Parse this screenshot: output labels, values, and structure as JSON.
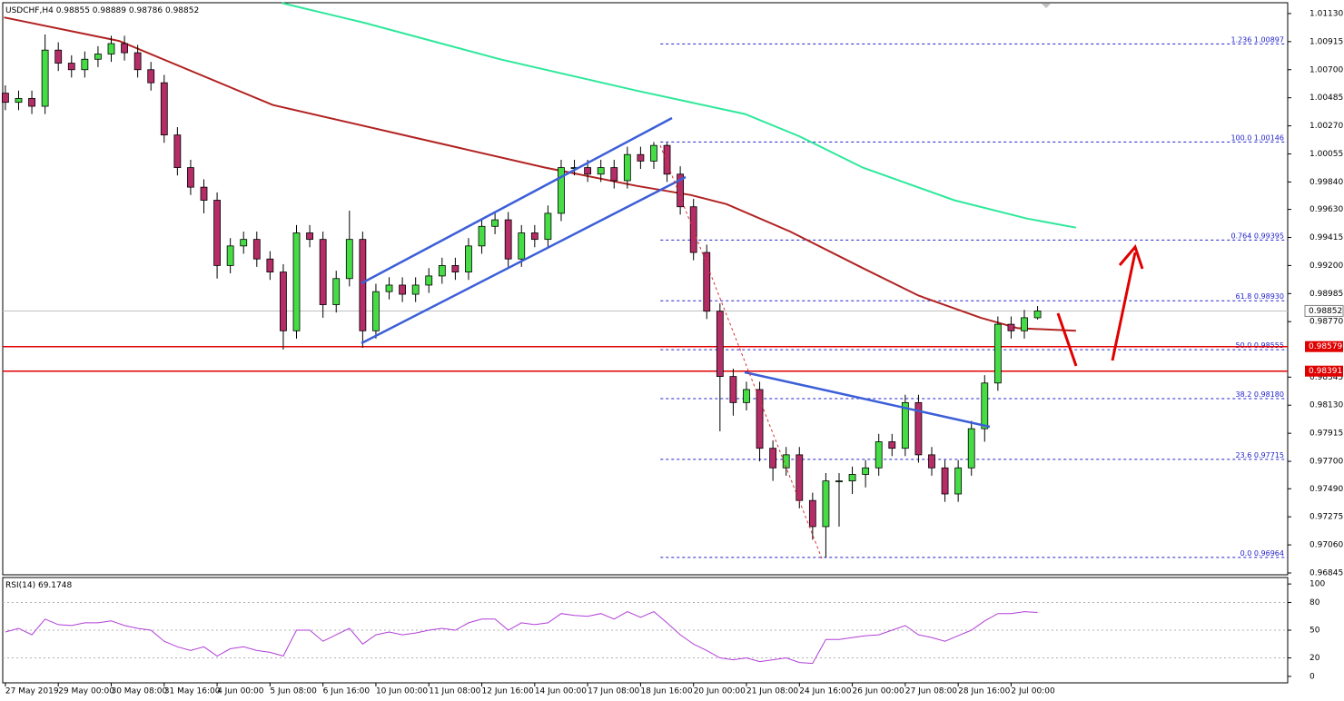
{
  "chart_data": {
    "type": "candlestick",
    "title": "USDCHF,H4",
    "ohlc_readout": [
      0.98855,
      0.98889,
      0.98786,
      0.98852
    ],
    "open": [
      1.0052,
      1.0045,
      1.0048,
      1.0042,
      1.0085,
      1.0075,
      1.007,
      1.0078,
      1.0082,
      1.009,
      1.0083,
      1.007,
      1.006,
      1.002,
      0.9995,
      0.998,
      0.997,
      0.992,
      0.9935,
      0.994,
      0.9925,
      0.9915,
      0.987,
      0.9945,
      0.994,
      0.989,
      0.991,
      0.994,
      0.987,
      0.99,
      0.9905,
      0.9898,
      0.9905,
      0.9912,
      0.992,
      0.9915,
      0.9935,
      0.995,
      0.9955,
      0.9925,
      0.9945,
      0.994,
      0.996,
      0.9995,
      0.9995,
      0.999,
      0.9995,
      0.9985,
      1.0005,
      1.0,
      1.0012,
      0.999,
      0.9965,
      0.993,
      0.9885,
      0.9835,
      0.9815,
      0.9825,
      0.978,
      0.9765,
      0.9775,
      0.974,
      0.972,
      0.9755,
      0.9755,
      0.976,
      0.9765,
      0.9785,
      0.978,
      0.9815,
      0.9775,
      0.9765,
      0.9745,
      0.9765,
      0.9795,
      0.983,
      0.9875,
      0.987,
      0.988
    ],
    "high": [
      1.0058,
      1.0054,
      1.0054,
      1.0097,
      1.0091,
      1.0081,
      1.0084,
      1.0088,
      1.0096,
      1.0096,
      1.0089,
      1.0076,
      1.0066,
      1.0026,
      1.0001,
      0.9986,
      0.9976,
      0.9941,
      0.9946,
      0.9946,
      0.9931,
      0.9921,
      0.9951,
      0.9951,
      0.9946,
      0.9916,
      0.9962,
      0.9946,
      0.9906,
      0.9911,
      0.9911,
      0.9911,
      0.9918,
      0.9926,
      0.9926,
      0.9941,
      0.9956,
      0.9961,
      0.9961,
      0.9951,
      0.9951,
      0.9966,
      1.0001,
      1.0001,
      1.0001,
      1.0001,
      1.0001,
      1.0011,
      1.0011,
      1.00146,
      1.0014,
      0.9996,
      0.9971,
      0.9936,
      0.9891,
      0.9841,
      0.9831,
      0.9831,
      0.9786,
      0.9781,
      0.9781,
      0.9746,
      0.9761,
      0.9761,
      0.9766,
      0.9771,
      0.9791,
      0.9791,
      0.9821,
      0.9821,
      0.9781,
      0.9771,
      0.9771,
      0.9801,
      0.9836,
      0.9881,
      0.9881,
      0.9886,
      0.98889
    ],
    "low": [
      1.0039,
      1.0039,
      1.0036,
      1.0036,
      1.0069,
      1.0064,
      1.0064,
      1.0072,
      1.0076,
      1.0077,
      1.0064,
      1.0054,
      1.0014,
      0.9989,
      0.9974,
      0.996,
      0.991,
      0.9914,
      0.9929,
      0.9919,
      0.9909,
      0.98556,
      0.9864,
      0.9934,
      0.988,
      0.9884,
      0.9904,
      0.9857,
      0.9864,
      0.9894,
      0.9892,
      0.9892,
      0.9899,
      0.9906,
      0.9909,
      0.9909,
      0.9929,
      0.9944,
      0.9919,
      0.9919,
      0.9934,
      0.9934,
      0.9954,
      0.9989,
      0.9984,
      0.9984,
      0.9979,
      0.9979,
      0.9994,
      0.9994,
      0.9984,
      0.9959,
      0.9924,
      0.9879,
      0.9793,
      0.9805,
      0.9809,
      0.977,
      0.9755,
      0.9759,
      0.9734,
      0.971,
      0.96964,
      0.972,
      0.9745,
      0.975,
      0.9759,
      0.9774,
      0.9774,
      0.9769,
      0.9759,
      0.9739,
      0.9739,
      0.9759,
      0.9785,
      0.9824,
      0.9864,
      0.9864,
      0.98786
    ],
    "close": [
      1.0045,
      1.0048,
      1.0042,
      1.0085,
      1.0075,
      1.007,
      1.0078,
      1.0082,
      1.009,
      1.0083,
      1.007,
      1.006,
      1.002,
      0.9995,
      0.998,
      0.997,
      0.992,
      0.9935,
      0.994,
      0.9925,
      0.9915,
      0.987,
      0.9945,
      0.994,
      0.989,
      0.991,
      0.994,
      0.987,
      0.99,
      0.9905,
      0.9898,
      0.9905,
      0.9912,
      0.992,
      0.9915,
      0.9935,
      0.995,
      0.9955,
      0.9925,
      0.9945,
      0.994,
      0.996,
      0.9995,
      0.9995,
      0.999,
      0.9995,
      0.9985,
      1.0005,
      1.0,
      1.0012,
      0.999,
      0.9965,
      0.993,
      0.9885,
      0.9835,
      0.9815,
      0.9825,
      0.978,
      0.9765,
      0.9775,
      0.974,
      0.972,
      0.9755,
      0.9755,
      0.976,
      0.9765,
      0.9785,
      0.978,
      0.9815,
      0.9775,
      0.9765,
      0.9745,
      0.9765,
      0.9795,
      0.983,
      0.9875,
      0.987,
      0.988,
      0.98852
    ],
    "up_color": "#46dc46",
    "down_color": "#b42d67",
    "xlim": [
      -0.2,
      96.9
    ],
    "xticks": [
      {
        "value": 0,
        "label": "27 May 2019"
      },
      {
        "value": 4,
        "label": "29 May 00:00"
      },
      {
        "value": 8,
        "label": "30 May 08:00"
      },
      {
        "value": 12,
        "label": "31 May 16:00"
      },
      {
        "value": 16,
        "label": "4 Jun 00:00"
      },
      {
        "value": 20,
        "label": "5 Jun 08:00"
      },
      {
        "value": 24,
        "label": "6 Jun 16:00"
      },
      {
        "value": 28,
        "label": "10 Jun 00:00"
      },
      {
        "value": 32,
        "label": "11 Jun 08:00"
      },
      {
        "value": 36,
        "label": "12 Jun 16:00"
      },
      {
        "value": 40,
        "label": "14 Jun 00:00"
      },
      {
        "value": 44,
        "label": "17 Jun 08:00"
      },
      {
        "value": 48,
        "label": "18 Jun 16:00"
      },
      {
        "value": 52,
        "label": "20 Jun 00:00"
      },
      {
        "value": 56,
        "label": "21 Jun 08:00"
      },
      {
        "value": 60,
        "label": "24 Jun 16:00"
      },
      {
        "value": 64,
        "label": "26 Jun 00:00"
      },
      {
        "value": 68,
        "label": "27 Jun 08:00"
      },
      {
        "value": 72,
        "label": "28 Jun 16:00"
      },
      {
        "value": 76,
        "label": "2 Jul 00:00"
      }
    ],
    "ylim": [
      0.96831,
      1.01213
    ],
    "yticks": [
      {
        "value": 1.0113,
        "label": "1.01130"
      },
      {
        "value": 1.00915,
        "label": "1.00915"
      },
      {
        "value": 1.007,
        "label": "1.00700"
      },
      {
        "value": 1.00485,
        "label": "1.00485"
      },
      {
        "value": 1.0027,
        "label": "1.00270"
      },
      {
        "value": 1.00055,
        "label": "1.00055"
      },
      {
        "value": 0.9984,
        "label": "0.99840"
      },
      {
        "value": 0.9963,
        "label": "0.99630"
      },
      {
        "value": 0.99415,
        "label": "0.99415"
      },
      {
        "value": 0.992,
        "label": "0.99200"
      },
      {
        "value": 0.98985,
        "label": "0.98985"
      },
      {
        "value": 0.9877,
        "label": "0.98770"
      },
      {
        "value": 0.98345,
        "label": "0.98345"
      },
      {
        "value": 0.9813,
        "label": "0.98130"
      },
      {
        "value": 0.97915,
        "label": "0.97915"
      },
      {
        "value": 0.977,
        "label": "0.97700"
      },
      {
        "value": 0.9749,
        "label": "0.97490"
      },
      {
        "value": 0.97275,
        "label": "0.97275"
      },
      {
        "value": 0.9706,
        "label": "0.97060"
      },
      {
        "value": 0.96845,
        "label": "0.96845"
      }
    ],
    "moving_averages": [
      {
        "color": "#b22222",
        "x": [
          -0.1,
          8.6,
          20.2,
          30.5,
          40.8,
          47.7,
          51.8,
          54.5,
          59.3,
          64.8,
          69,
          73.7,
          76.5,
          80.9
        ],
        "values": [
          1.011,
          1.0092,
          1.0043,
          1.0019,
          0.9995,
          0.9981,
          0.9974,
          0.9967,
          0.9946,
          0.9918,
          0.9897,
          0.988,
          0.9872,
          0.987
        ]
      },
      {
        "color": "#2ee89a",
        "x": [
          20.9,
          27.1,
          37.4,
          47.7,
          55.9,
          60,
          64.8,
          71.7,
          77.2,
          80.9
        ],
        "values": [
          1.0121,
          1.0106,
          1.0078,
          1.0054,
          1.0036,
          1.0019,
          0.9995,
          0.997,
          0.9956,
          0.9949
        ]
      }
    ],
    "fibonacci": [
      {
        "level": "1.236",
        "value": 1.00897,
        "label": "1.00897"
      },
      {
        "level": "100.0",
        "value": 1.00146,
        "label": "1.00146"
      },
      {
        "level": "0.764",
        "value": 0.99395,
        "label": "0.99395"
      },
      {
        "level": "61.8",
        "value": 0.9893,
        "label": "0.98930"
      },
      {
        "level": "50.0",
        "value": 0.98555,
        "label": "0.98555"
      },
      {
        "level": "38.2",
        "value": 0.9818,
        "label": "0.98180"
      },
      {
        "level": "23.6",
        "value": 0.97715,
        "label": "0.97715"
      },
      {
        "level": "0.0",
        "value": 0.96964,
        "label": "0.96964"
      }
    ],
    "fib_start": 49.5,
    "levels": [
      {
        "value": 0.98579,
        "label": "0.98579",
        "color": "#e00000"
      },
      {
        "value": 0.98391,
        "label": "0.98391",
        "color": "#e00000"
      }
    ],
    "last_price": {
      "value": 0.98852,
      "label": "0.98852"
    },
    "rsi": {
      "name": "RSI(14)",
      "color": "#b13fd6",
      "ylim": [
        -7,
        107
      ],
      "yticks": [
        100,
        80,
        50,
        20,
        0
      ],
      "levels": [
        80,
        50,
        20
      ],
      "values": [
        48,
        52,
        45,
        62,
        56,
        55,
        58,
        58,
        60,
        55,
        52,
        50,
        38,
        32,
        28,
        32,
        22,
        30,
        32,
        28,
        26,
        22,
        50,
        50,
        38,
        45,
        52,
        35,
        45,
        48,
        45,
        47,
        50,
        52,
        50,
        58,
        62,
        62,
        50,
        58,
        56,
        58,
        68,
        66,
        65,
        68,
        62,
        70,
        64,
        70,
        58,
        45,
        35,
        28,
        20,
        18,
        20,
        16,
        18,
        20,
        15,
        14,
        40,
        40,
        42,
        44,
        45,
        50,
        55,
        45,
        42,
        38,
        44,
        50,
        60,
        68,
        68,
        70,
        69.1748
      ]
    }
  }
}
